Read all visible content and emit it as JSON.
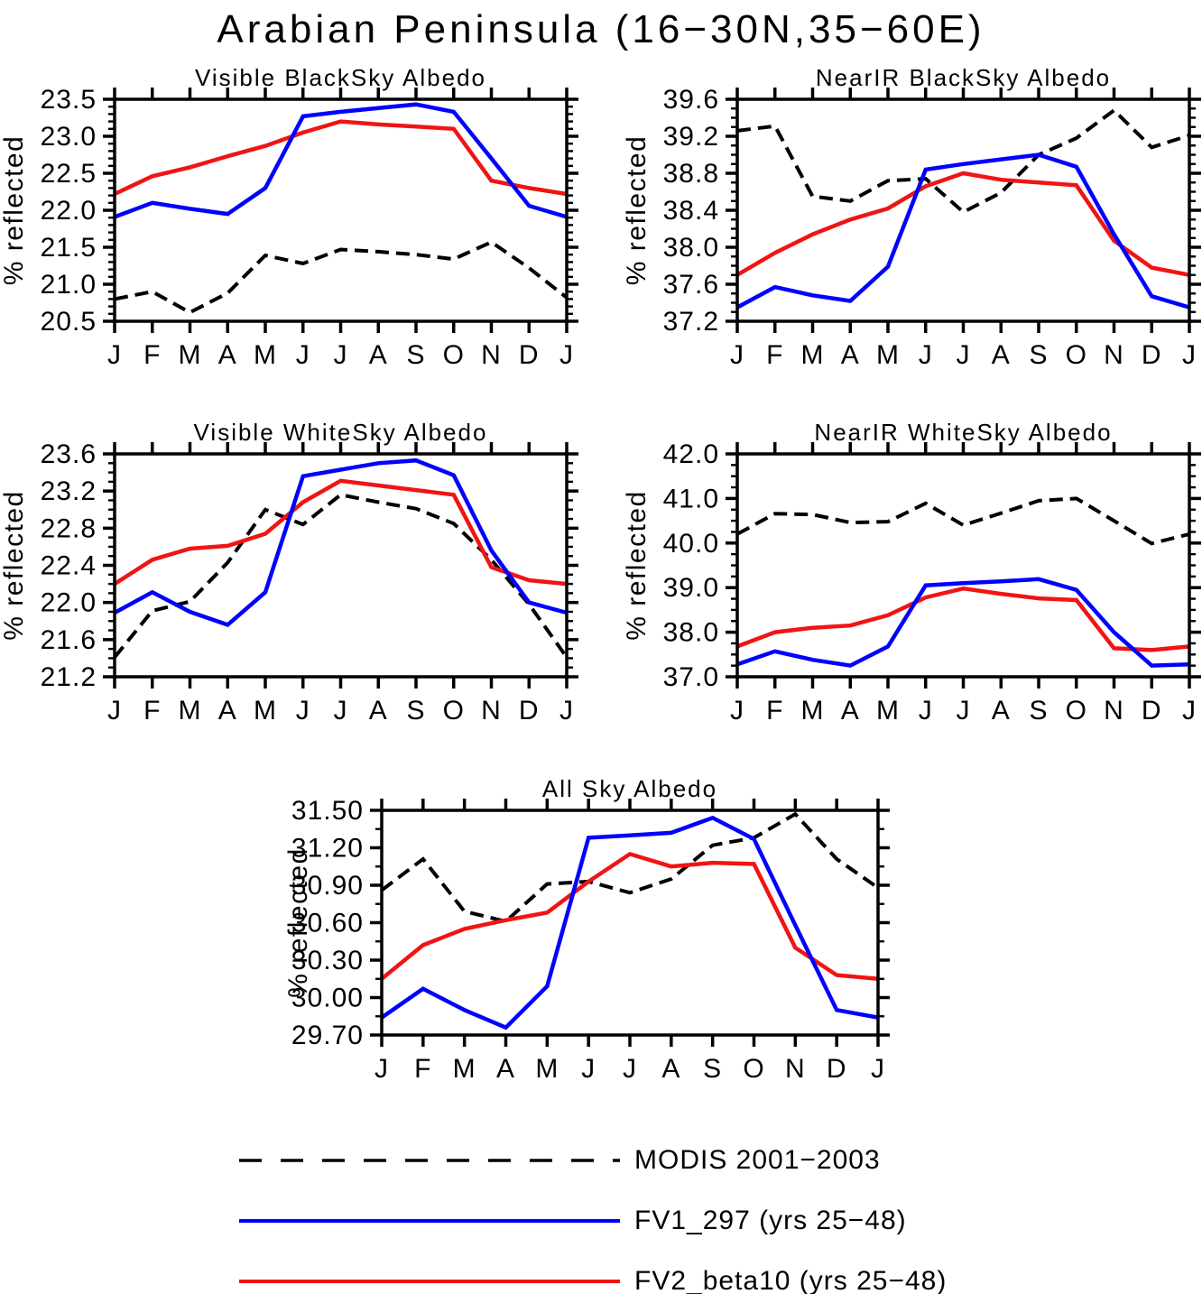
{
  "title": "Arabian Peninsula (16−30N,35−60E)",
  "colors": {
    "modis": "#000000",
    "fv1": "#0000ff",
    "fv2": "#f01414"
  },
  "legend": {
    "items": [
      {
        "label": "MODIS 2001−2003",
        "key": "modis",
        "style": "dashed"
      },
      {
        "label": "FV1_297 (yrs 25−48)",
        "key": "fv1",
        "style": "solid"
      },
      {
        "label": "FV2_beta10 (yrs 25−48)",
        "key": "fv2",
        "style": "solid"
      }
    ]
  },
  "chart_data": [
    {
      "type": "line",
      "title": "Visible BlackSky Albedo",
      "ylabel": "% reflected",
      "x": [
        "J",
        "F",
        "M",
        "A",
        "M",
        "J",
        "J",
        "A",
        "S",
        "O",
        "N",
        "D",
        "J"
      ],
      "ylim": [
        20.5,
        23.5
      ],
      "ytick_step": 0.5,
      "yminor_step": 0.1,
      "ytick_decimals": 1,
      "grid": false,
      "series": [
        {
          "name": "MODIS 2001−2003",
          "key": "modis",
          "style": "dashed",
          "values": [
            20.8,
            20.9,
            20.62,
            20.88,
            21.39,
            21.28,
            21.47,
            21.44,
            21.4,
            21.34,
            21.57,
            21.22,
            20.82
          ]
        },
        {
          "name": "FV2_beta10 (yrs 25−48)",
          "key": "fv2",
          "style": "solid",
          "values": [
            22.22,
            22.46,
            22.58,
            22.73,
            22.87,
            23.05,
            23.2,
            23.16,
            23.13,
            23.1,
            22.4,
            22.3,
            22.22
          ]
        },
        {
          "name": "FV1_297 (yrs 25−48)",
          "key": "fv1",
          "style": "solid",
          "values": [
            21.91,
            22.1,
            22.02,
            21.95,
            22.3,
            23.27,
            23.33,
            23.38,
            23.43,
            23.33,
            22.7,
            22.06,
            21.91
          ]
        }
      ]
    },
    {
      "type": "line",
      "title": "NearIR BlackSky Albedo",
      "ylabel": "% reflected",
      "x": [
        "J",
        "F",
        "M",
        "A",
        "M",
        "J",
        "J",
        "A",
        "S",
        "O",
        "N",
        "D",
        "J"
      ],
      "ylim": [
        37.2,
        39.6
      ],
      "ytick_step": 0.4,
      "yminor_step": 0.1,
      "ytick_decimals": 1,
      "grid": false,
      "series": [
        {
          "name": "MODIS 2001−2003",
          "key": "modis",
          "style": "dashed",
          "values": [
            39.26,
            39.31,
            38.55,
            38.5,
            38.72,
            38.74,
            38.38,
            38.59,
            39.0,
            39.18,
            39.48,
            39.08,
            39.21
          ]
        },
        {
          "name": "FV2_beta10 (yrs 25−48)",
          "key": "fv2",
          "style": "solid",
          "values": [
            37.7,
            37.94,
            38.14,
            38.3,
            38.42,
            38.66,
            38.8,
            38.73,
            38.7,
            38.67,
            38.07,
            37.78,
            37.7
          ]
        },
        {
          "name": "FV1_297 (yrs 25−48)",
          "key": "fv1",
          "style": "solid",
          "values": [
            37.35,
            37.57,
            37.48,
            37.42,
            37.79,
            38.84,
            38.9,
            38.95,
            39.0,
            38.87,
            38.14,
            37.47,
            37.35
          ]
        }
      ]
    },
    {
      "type": "line",
      "title": "Visible WhiteSky Albedo",
      "ylabel": "% reflected",
      "x": [
        "J",
        "F",
        "M",
        "A",
        "M",
        "J",
        "J",
        "A",
        "S",
        "O",
        "N",
        "D",
        "J"
      ],
      "ylim": [
        21.2,
        23.6
      ],
      "ytick_step": 0.4,
      "yminor_step": 0.1,
      "ytick_decimals": 1,
      "grid": false,
      "series": [
        {
          "name": "MODIS 2001−2003",
          "key": "modis",
          "style": "dashed",
          "values": [
            21.41,
            21.91,
            22.01,
            22.43,
            23.0,
            22.84,
            23.16,
            23.08,
            23.01,
            22.85,
            22.46,
            21.98,
            21.41
          ]
        },
        {
          "name": "FV2_beta10 (yrs 25−48)",
          "key": "fv2",
          "style": "solid",
          "values": [
            22.2,
            22.46,
            22.58,
            22.61,
            22.74,
            23.08,
            23.31,
            23.26,
            23.21,
            23.16,
            22.38,
            22.24,
            22.2
          ]
        },
        {
          "name": "FV1_297 (yrs 25−48)",
          "key": "fv1",
          "style": "solid",
          "values": [
            21.89,
            22.11,
            21.9,
            21.76,
            22.11,
            23.36,
            23.43,
            23.5,
            23.53,
            23.37,
            22.56,
            22.0,
            21.89
          ]
        }
      ]
    },
    {
      "type": "line",
      "title": "NearIR WhiteSky Albedo",
      "ylabel": "% reflected",
      "x": [
        "J",
        "F",
        "M",
        "A",
        "M",
        "J",
        "J",
        "A",
        "S",
        "O",
        "N",
        "D",
        "J"
      ],
      "ylim": [
        37.0,
        42.0
      ],
      "ytick_step": 1.0,
      "yminor_step": 0.25,
      "ytick_decimals": 1,
      "grid": false,
      "series": [
        {
          "name": "MODIS 2001−2003",
          "key": "modis",
          "style": "dashed",
          "values": [
            40.2,
            40.66,
            40.64,
            40.46,
            40.48,
            40.89,
            40.4,
            40.67,
            40.95,
            41.0,
            40.5,
            39.99,
            40.2
          ]
        },
        {
          "name": "FV2_beta10 (yrs 25−48)",
          "key": "fv2",
          "style": "solid",
          "values": [
            37.68,
            38.0,
            38.1,
            38.15,
            38.38,
            38.78,
            38.98,
            38.86,
            38.76,
            38.72,
            37.64,
            37.6,
            37.68
          ]
        },
        {
          "name": "FV1_297 (yrs 25−48)",
          "key": "fv1",
          "style": "solid",
          "values": [
            37.28,
            37.57,
            37.38,
            37.25,
            37.68,
            39.05,
            39.1,
            39.14,
            39.19,
            38.95,
            38.0,
            37.25,
            37.28
          ]
        }
      ]
    },
    {
      "type": "line",
      "title": "All Sky Albedo",
      "ylabel": "% reflected",
      "x": [
        "J",
        "F",
        "M",
        "A",
        "M",
        "J",
        "J",
        "A",
        "S",
        "O",
        "N",
        "D",
        "J"
      ],
      "ylim": [
        29.7,
        31.5
      ],
      "ytick_step": 0.3,
      "yminor_step": 0.15,
      "ytick_decimals": 2,
      "grid": false,
      "series": [
        {
          "name": "MODIS 2001−2003",
          "key": "modis",
          "style": "dashed",
          "values": [
            30.86,
            31.11,
            30.69,
            30.61,
            30.91,
            30.93,
            30.84,
            30.95,
            31.22,
            31.28,
            31.47,
            31.11,
            30.88
          ]
        },
        {
          "name": "FV2_beta10 (yrs 25−48)",
          "key": "fv2",
          "style": "solid",
          "values": [
            30.15,
            30.42,
            30.55,
            30.62,
            30.68,
            30.93,
            31.15,
            31.05,
            31.08,
            31.07,
            30.4,
            30.18,
            30.15
          ]
        },
        {
          "name": "FV1_297 (yrs 25−48)",
          "key": "fv1",
          "style": "solid",
          "values": [
            29.84,
            30.07,
            29.9,
            29.76,
            30.09,
            31.28,
            31.3,
            31.32,
            31.44,
            31.27,
            30.58,
            29.9,
            29.84
          ]
        }
      ]
    }
  ]
}
